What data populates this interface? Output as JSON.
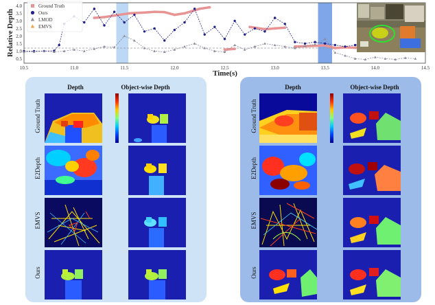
{
  "chart_data": {
    "type": "line",
    "ylabel": "Relative Depth",
    "xlabel": "Time(s)",
    "xlim": [
      10.5,
      14.5
    ],
    "ylim": [
      0.2,
      4.2
    ],
    "xticks": [
      "10.5",
      "11.0",
      "11.5",
      "12.0",
      "12.5",
      "13.0",
      "13.5",
      "14.0",
      "14.5"
    ],
    "yticks": [
      "0.5",
      "1.0",
      "1.5",
      "2.0",
      "2.5",
      "3.0",
      "3.5",
      "4.0"
    ],
    "legend": "top-left",
    "highlight_spans": [
      [
        11.42,
        11.54
      ],
      [
        13.43,
        13.57
      ]
    ],
    "reference_line": 1.2,
    "series": [
      {
        "name": "Ground Truth",
        "color": "#e89494",
        "x": [
          11.2,
          11.3,
          11.4,
          11.55,
          11.7,
          11.8,
          11.9,
          12.0,
          12.1,
          12.25,
          12.35,
          12.5,
          12.6,
          12.75,
          12.9,
          13.0,
          13.1,
          13.2,
          13.3,
          13.4,
          13.5,
          13.6,
          13.7,
          13.8,
          13.9
        ],
        "y": [
          3.2,
          3.25,
          3.35,
          3.5,
          3.55,
          3.6,
          3.58,
          3.4,
          3.5,
          3.8,
          3.9,
          1.1,
          1.15,
          2.6,
          2.45,
          2.5,
          2.55,
          1.3,
          1.32,
          1.35,
          1.38,
          1.2,
          1.25,
          1.22,
          1.25
        ]
      },
      {
        "name": "Ours",
        "color": "#22228a",
        "x": [
          10.5,
          10.6,
          10.7,
          10.8,
          10.85,
          10.9,
          11.0,
          11.1,
          11.2,
          11.3,
          11.4,
          11.5,
          11.6,
          11.7,
          11.8,
          11.9,
          12.0,
          12.1,
          12.2,
          12.3,
          12.4,
          12.5,
          12.6,
          12.7,
          12.8,
          12.9,
          13.0,
          13.1,
          13.2,
          13.3,
          13.4,
          13.5,
          13.6,
          13.7,
          13.8,
          13.9,
          14.0
        ],
        "y": [
          1.0,
          1.0,
          1.0,
          1.02,
          1.4,
          2.8,
          3.3,
          2.9,
          3.8,
          2.7,
          3.6,
          2.9,
          3.4,
          2.3,
          2.5,
          1.7,
          2.4,
          2.9,
          3.8,
          2.1,
          2.6,
          1.8,
          3.0,
          2.1,
          2.5,
          2.3,
          3.2,
          2.8,
          1.6,
          1.5,
          1.6,
          1.5,
          1.4,
          1.3,
          1.4,
          1.5,
          1.3
        ]
      },
      {
        "name": "LMOD",
        "color": "#8a8a9a",
        "x": [
          10.5,
          10.6,
          10.7,
          10.8,
          10.9,
          11.0,
          11.1,
          11.2,
          11.3,
          11.4,
          11.5,
          11.6,
          11.7,
          11.8,
          11.9,
          12.0,
          12.1,
          12.2,
          12.3,
          12.4,
          12.5,
          12.6,
          12.7,
          12.8,
          12.9,
          13.0,
          13.1,
          13.2,
          13.3,
          13.4,
          13.5,
          13.6,
          13.7,
          13.8,
          13.9,
          14.0,
          14.1,
          14.2,
          14.3,
          14.4
        ],
        "y": [
          0.95,
          0.95,
          1.0,
          0.95,
          1.0,
          1.1,
          1.0,
          1.15,
          1.3,
          1.25,
          2.0,
          1.7,
          1.2,
          1.0,
          0.95,
          1.1,
          1.3,
          1.5,
          1.2,
          1.0,
          0.95,
          1.4,
          1.1,
          1.3,
          1.5,
          1.4,
          1.3,
          1.2,
          1.35,
          1.45,
          1.8,
          0.9,
          0.7,
          0.5,
          0.45,
          0.6,
          0.5,
          0.45,
          0.55,
          0.5
        ]
      }
    ]
  },
  "legend_items": [
    {
      "label": "Ground Truth",
      "color": "#e89494",
      "marker": "square"
    },
    {
      "label": "Ours",
      "color": "#22228a",
      "marker": "circle"
    },
    {
      "label": "LMOD",
      "color": "#8a8a9a",
      "marker": "triangle"
    },
    {
      "label": "EMVS",
      "color": "#f0a040",
      "marker": "triangle"
    }
  ],
  "panels": {
    "left": {
      "col_titles": [
        "Depth",
        "Object-wise Depth"
      ],
      "row_labels": [
        "Ground Truth",
        "E2Depth",
        "EMVS",
        "Ours"
      ]
    },
    "right": {
      "col_titles": [
        "Depth",
        "Object-wise Depth"
      ],
      "row_labels": [
        "Ground Truth",
        "E2Depth",
        "EMVS",
        "Ours"
      ]
    }
  }
}
